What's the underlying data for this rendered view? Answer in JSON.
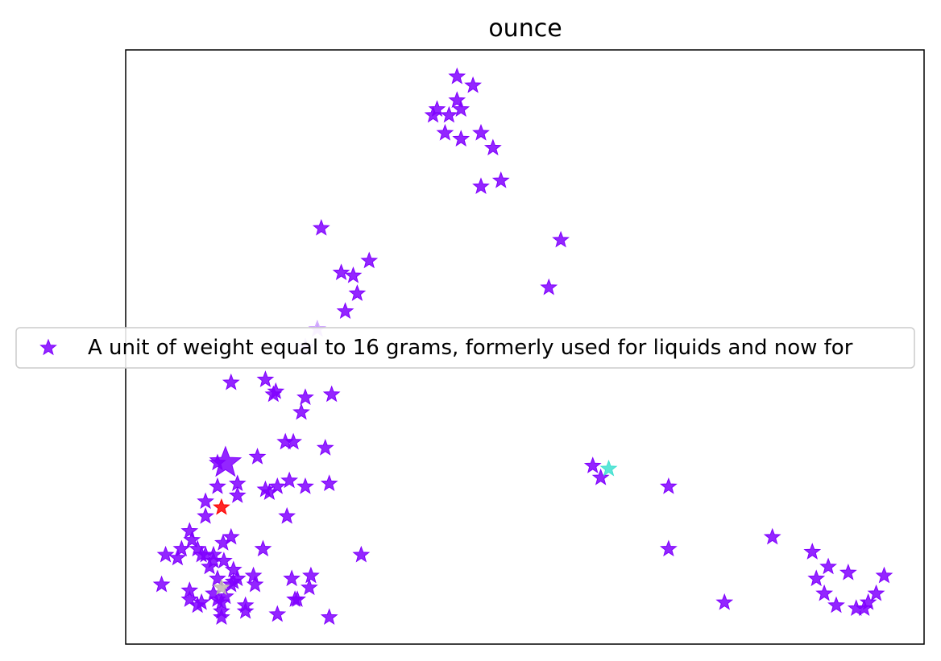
{
  "chart_data": {
    "type": "scatter",
    "title": "ounce",
    "xlabel": "",
    "ylabel": "",
    "xlim": [
      0,
      100
    ],
    "ylim": [
      0,
      100
    ],
    "grid": false,
    "axis_ticks": false,
    "legend": {
      "placement": "center-left",
      "entries": [
        {
          "label": "A unit of weight equal to 16 grams, formerly used for liquids and now for",
          "color": "#8000ff"
        }
      ]
    },
    "colors": {
      "main": "#8000ff",
      "red": "#ff0000",
      "cyan": "#40e0d0",
      "light": "#d8b8ff",
      "gray": "#c0b8b0"
    },
    "series": [
      {
        "name": "A unit of weight equal to 16 grams, formerly used for liquids and now for",
        "color": "#8000ff",
        "points": [
          [
            41.5,
            95.5
          ],
          [
            43.5,
            94
          ],
          [
            41.5,
            91.5
          ],
          [
            39,
            90
          ],
          [
            42,
            90
          ],
          [
            38.5,
            89
          ],
          [
            40.5,
            89
          ],
          [
            44.5,
            86
          ],
          [
            40,
            86
          ],
          [
            42,
            85
          ],
          [
            46,
            83.5
          ],
          [
            44.5,
            77
          ],
          [
            47,
            78
          ],
          [
            24.5,
            70
          ],
          [
            54.5,
            68
          ],
          [
            30.5,
            64.5
          ],
          [
            27,
            62.5
          ],
          [
            28.5,
            62
          ],
          [
            29,
            59
          ],
          [
            53,
            60
          ],
          [
            27.5,
            56
          ],
          [
            24,
            53
          ],
          [
            22.5,
            50
          ],
          [
            13.2,
            44
          ],
          [
            17.5,
            44.5
          ],
          [
            18.8,
            42.5
          ],
          [
            22.5,
            41.5
          ],
          [
            18.5,
            42
          ],
          [
            25.8,
            42
          ],
          [
            22,
            39
          ],
          [
            20,
            34
          ],
          [
            21,
            34
          ],
          [
            25,
            33
          ],
          [
            16.5,
            31.5
          ],
          [
            58.5,
            30
          ],
          [
            59.5,
            28
          ],
          [
            68,
            26.5
          ],
          [
            11.5,
            30.5
          ],
          [
            14,
            27
          ],
          [
            11.5,
            26.5
          ],
          [
            14,
            25
          ],
          [
            17.5,
            26
          ],
          [
            20.5,
            27.5
          ],
          [
            19,
            26.5
          ],
          [
            18,
            25.5
          ],
          [
            25.5,
            27
          ],
          [
            22.5,
            26.5
          ],
          [
            10,
            24
          ],
          [
            10,
            21.5
          ],
          [
            20.2,
            21.5
          ],
          [
            8,
            19
          ],
          [
            8.3,
            17.5
          ],
          [
            7,
            16
          ],
          [
            9,
            16
          ],
          [
            13.2,
            18
          ],
          [
            12.2,
            17
          ],
          [
            9.5,
            15
          ],
          [
            11,
            15
          ],
          [
            5,
            15
          ],
          [
            6.5,
            14.5
          ],
          [
            10,
            15
          ],
          [
            11,
            14
          ],
          [
            12.3,
            14
          ],
          [
            17.2,
            16
          ],
          [
            29.5,
            15
          ],
          [
            10.5,
            13
          ],
          [
            13.5,
            12.5
          ],
          [
            14,
            11
          ],
          [
            11.5,
            11
          ],
          [
            13.2,
            10
          ],
          [
            16.2,
            10
          ],
          [
            16,
            11.5
          ],
          [
            20.8,
            11
          ],
          [
            23.2,
            11.5
          ],
          [
            4.5,
            10
          ],
          [
            8,
            9
          ],
          [
            13.5,
            10.5
          ],
          [
            11,
            8.5
          ],
          [
            23,
            9.5
          ],
          [
            11.5,
            7.5
          ],
          [
            8,
            7.5
          ],
          [
            9.5,
            7
          ],
          [
            12.5,
            8
          ],
          [
            15,
            6.5
          ],
          [
            21.2,
            7.5
          ],
          [
            9,
            6.5
          ],
          [
            12,
            5.5
          ],
          [
            15,
            5.5
          ],
          [
            12,
            4.5
          ],
          [
            19,
            5
          ],
          [
            25.5,
            4.5
          ],
          [
            21.5,
            7.5
          ],
          [
            12,
            7
          ],
          [
            68,
            16
          ],
          [
            81,
            18
          ],
          [
            86,
            15.5
          ],
          [
            88,
            13
          ],
          [
            90.5,
            12
          ],
          [
            86.5,
            11
          ],
          [
            95,
            11.5
          ],
          [
            75,
            7
          ],
          [
            87.5,
            8.5
          ],
          [
            89,
            6.5
          ],
          [
            93,
            7
          ],
          [
            92.5,
            6
          ],
          [
            94,
            8.5
          ],
          [
            91.5,
            6
          ]
        ]
      }
    ],
    "highlighted_points": [
      {
        "x": 12.5,
        "y": 30.5,
        "color": "#8000ff",
        "size": "large"
      },
      {
        "x": 12,
        "y": 23,
        "color": "#ff0000",
        "size": "normal"
      },
      {
        "x": 60.5,
        "y": 29.5,
        "color": "#40e0d0",
        "size": "normal"
      },
      {
        "x": 24,
        "y": 53,
        "color": "#d8b8ff",
        "size": "normal"
      },
      {
        "x": 22.5,
        "y": 50,
        "color": "#d8b8ff",
        "size": "normal"
      },
      {
        "x": 12,
        "y": 9.5,
        "color": "#c0b8b0",
        "size": "normal"
      }
    ]
  }
}
